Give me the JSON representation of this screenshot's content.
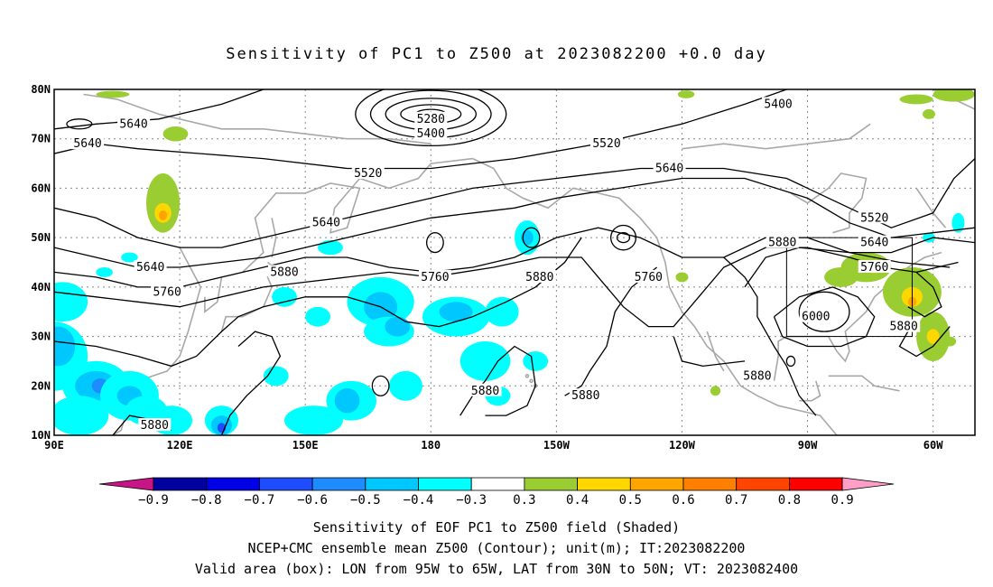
{
  "title": "Sensitivity of PC1 to Z500 at 2023082200 +0.0 day",
  "map": {
    "lat_labels": [
      "80N",
      "70N",
      "60N",
      "50N",
      "40N",
      "30N",
      "20N",
      "10N"
    ],
    "lon_labels": [
      "90E",
      "120E",
      "150E",
      "180",
      "150W",
      "120W",
      "90W",
      "60W"
    ],
    "extent": {
      "lon_min": 90,
      "lon_max": 310,
      "lat_min": 10,
      "lat_max": 80
    },
    "valid_box": {
      "lon_from": "95W",
      "lon_to": "65W",
      "lat_from": "30N",
      "lat_to": "50N"
    },
    "contour_labels": [
      {
        "text": "5640",
        "lon": 109,
        "lat": 73
      },
      {
        "text": "5640",
        "lon": 98,
        "lat": 69
      },
      {
        "text": "5280",
        "lon": 180,
        "lat": 74
      },
      {
        "text": "5400",
        "lon": 180,
        "lat": 71
      },
      {
        "text": "5400",
        "lon": 263,
        "lat": 77
      },
      {
        "text": "5520",
        "lon": 222,
        "lat": 69
      },
      {
        "text": "5520",
        "lon": 165,
        "lat": 63
      },
      {
        "text": "5640",
        "lon": 237,
        "lat": 64
      },
      {
        "text": "5520",
        "lon": 286,
        "lat": 54
      },
      {
        "text": "5640",
        "lon": 155,
        "lat": 53
      },
      {
        "text": "5640",
        "lon": 286,
        "lat": 49
      },
      {
        "text": "5880",
        "lon": 264,
        "lat": 49
      },
      {
        "text": "5760",
        "lon": 286,
        "lat": 44
      },
      {
        "text": "5640",
        "lon": 113,
        "lat": 44
      },
      {
        "text": "5880",
        "lon": 145,
        "lat": 43
      },
      {
        "text": "5760",
        "lon": 181,
        "lat": 42
      },
      {
        "text": "5880",
        "lon": 206,
        "lat": 42
      },
      {
        "text": "5760",
        "lon": 232,
        "lat": 42
      },
      {
        "text": "5760",
        "lon": 117,
        "lat": 39
      },
      {
        "text": "6000",
        "lon": 272,
        "lat": 34
      },
      {
        "text": "5880",
        "lon": 293,
        "lat": 32
      },
      {
        "text": "5880",
        "lon": 258,
        "lat": 22
      },
      {
        "text": "5880",
        "lon": 193,
        "lat": 19
      },
      {
        "text": "5880",
        "lon": 217,
        "lat": 18
      },
      {
        "text": "5880",
        "lon": 114,
        "lat": 12
      }
    ]
  },
  "colorbar": {
    "labels": [
      "−0.9",
      "−0.8",
      "−0.7",
      "−0.6",
      "−0.5",
      "−0.4",
      "−0.3",
      "0.3",
      "0.4",
      "0.5",
      "0.6",
      "0.7",
      "0.8",
      "0.9"
    ],
    "colors": [
      "#0000a0",
      "#0000e6",
      "#1e4cff",
      "#1e8cff",
      "#00c8ff",
      "#00ffff",
      "#ffffff",
      "#9acd32",
      "#ffd700",
      "#ffa500",
      "#ff7f00",
      "#ff4500",
      "#ff0000"
    ],
    "low_arrow_color": "#c71585",
    "high_arrow_color": "#ff9ec7"
  },
  "captions": {
    "line1": "Sensitivity of EOF PC1 to Z500 field (Shaded)",
    "line2": "NCEP+CMC ensemble mean Z500 (Contour); unit(m); IT:2023082200",
    "line3": "Valid area (box): LON from 95W to 65W, LAT from 30N to 50N; VT: 2023082400"
  }
}
